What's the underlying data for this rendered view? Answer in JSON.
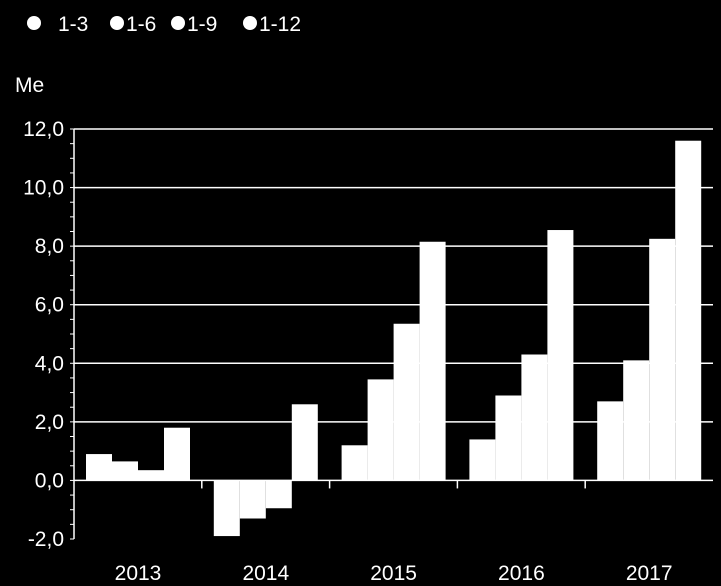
{
  "chart_data": {
    "type": "bar",
    "ylabel": "Me",
    "categories": [
      "2013",
      "2014",
      "2015",
      "2016",
      "2017"
    ],
    "series": [
      {
        "name": "1-3",
        "values": [
          0.9,
          -1.9,
          1.2,
          1.4,
          2.7
        ]
      },
      {
        "name": "1-6",
        "values": [
          0.65,
          -1.3,
          3.45,
          2.9,
          4.1
        ]
      },
      {
        "name": "1-9",
        "values": [
          0.35,
          -0.95,
          5.35,
          4.3,
          8.25
        ]
      },
      {
        "name": "1-12",
        "values": [
          1.8,
          2.6,
          8.15,
          8.55,
          11.6
        ]
      }
    ],
    "ylim": [
      -2.0,
      12.0
    ],
    "yticks": [
      -2.0,
      0.0,
      2.0,
      4.0,
      6.0,
      8.0,
      10.0,
      12.0
    ],
    "ytick_labels": [
      "-2,0",
      "0,0",
      "2,0",
      "4,0",
      "6,0",
      "8,0",
      "10,0",
      "12,0"
    ],
    "grid": true,
    "legend_position": "top-left",
    "colors": {
      "background": "#000000",
      "bars": "#ffffff",
      "grid": "#ffffff",
      "text": "#ffffff",
      "legend_marker": "#ffffff"
    }
  }
}
